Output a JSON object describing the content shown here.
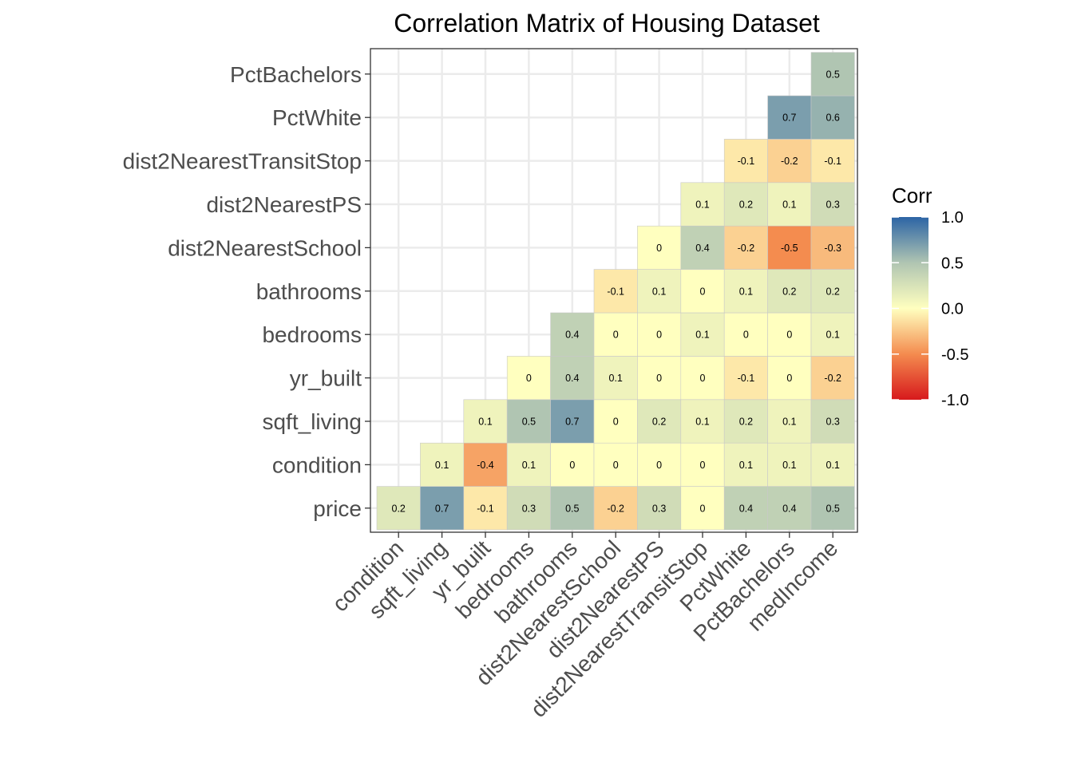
{
  "chart_data": {
    "type": "heatmap",
    "title": "Correlation Matrix of Housing Dataset",
    "x_categories": [
      "condition",
      "sqft_living",
      "yr_built",
      "bedrooms",
      "bathrooms",
      "dist2NearestSchool",
      "dist2NearestPS",
      "dist2NearestTransitStop",
      "PctWhite",
      "PctBachelors",
      "medIncome"
    ],
    "y_categories": [
      "price",
      "condition",
      "sqft_living",
      "yr_built",
      "bedrooms",
      "bathrooms",
      "dist2NearestSchool",
      "dist2NearestPS",
      "dist2NearestTransitStop",
      "PctWhite",
      "PctBachelors"
    ],
    "values": [
      [
        0.2,
        0.7,
        -0.1,
        0.3,
        0.5,
        -0.2,
        0.3,
        0,
        0.4,
        0.4,
        0.5
      ],
      [
        null,
        0.1,
        -0.4,
        0.1,
        0,
        0,
        0,
        0,
        0.1,
        0.1,
        0.1
      ],
      [
        null,
        null,
        0.1,
        0.5,
        0.7,
        0,
        0.2,
        0.1,
        0.2,
        0.1,
        0.3
      ],
      [
        null,
        null,
        null,
        0,
        0.4,
        0.1,
        0,
        0,
        -0.1,
        0,
        -0.2
      ],
      [
        null,
        null,
        null,
        null,
        0.4,
        0,
        0,
        0.1,
        0,
        0,
        0.1
      ],
      [
        null,
        null,
        null,
        null,
        null,
        -0.1,
        0.1,
        0,
        0.1,
        0.2,
        0.2
      ],
      [
        null,
        null,
        null,
        null,
        null,
        null,
        0,
        0.4,
        -0.2,
        -0.5,
        -0.3
      ],
      [
        null,
        null,
        null,
        null,
        null,
        null,
        null,
        0.1,
        0.2,
        0.1,
        0.3
      ],
      [
        null,
        null,
        null,
        null,
        null,
        null,
        null,
        null,
        -0.1,
        -0.2,
        -0.1
      ],
      [
        null,
        null,
        null,
        null,
        null,
        null,
        null,
        null,
        null,
        0.7,
        0.6
      ],
      [
        null,
        null,
        null,
        null,
        null,
        null,
        null,
        null,
        null,
        null,
        0.5
      ]
    ],
    "legend": {
      "title": "Corr",
      "ticks": [
        "1.0",
        "0.5",
        "0.0",
        "-0.5",
        "-1.0"
      ],
      "range": [
        -1,
        1
      ],
      "placement": "right"
    },
    "colors": {
      "neg1": "#d7191c",
      "neg05": "#f48c4f",
      "zero": "#ffffbf",
      "pos05": "#b0c5b2",
      "pos1": "#2c64a5"
    },
    "grid": true
  }
}
